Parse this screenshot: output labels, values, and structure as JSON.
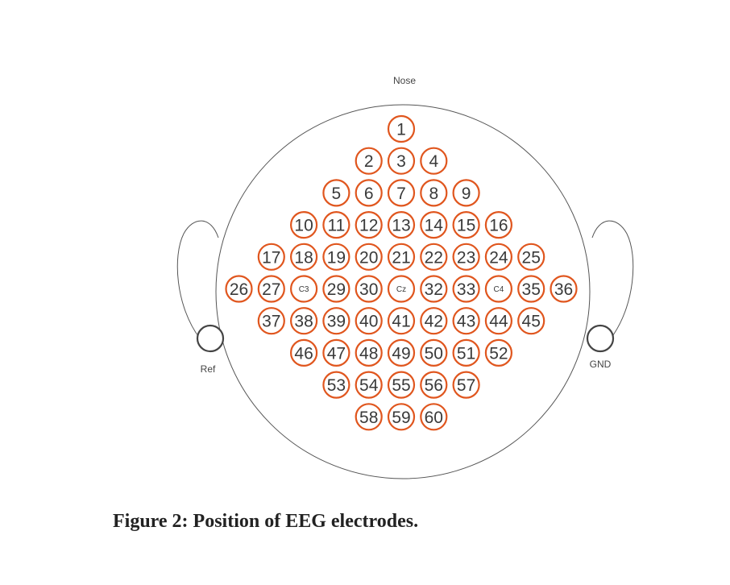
{
  "labels": {
    "nose": "Nose",
    "ref": "Ref",
    "gnd": "GND"
  },
  "caption": "Figure 2: Position of EEG electrodes.",
  "colors": {
    "electrode_ring": "#e0561e",
    "outline": "#555555",
    "text": "#3a3a3a"
  },
  "electrode_rows": [
    [
      "1"
    ],
    [
      "2",
      "3",
      "4"
    ],
    [
      "5",
      "6",
      "7",
      "8",
      "9"
    ],
    [
      "10",
      "11",
      "12",
      "13",
      "14",
      "15",
      "16"
    ],
    [
      "17",
      "18",
      "19",
      "20",
      "21",
      "22",
      "23",
      "24",
      "25"
    ],
    [
      "26",
      "27",
      "C3",
      "29",
      "30",
      "Cz",
      "32",
      "33",
      "C4",
      "35",
      "36"
    ],
    [
      "37",
      "38",
      "39",
      "40",
      "41",
      "42",
      "43",
      "44",
      "45"
    ],
    [
      "46",
      "47",
      "48",
      "49",
      "50",
      "51",
      "52"
    ],
    [
      "53",
      "54",
      "55",
      "56",
      "57"
    ],
    [
      "58",
      "59",
      "60"
    ]
  ]
}
